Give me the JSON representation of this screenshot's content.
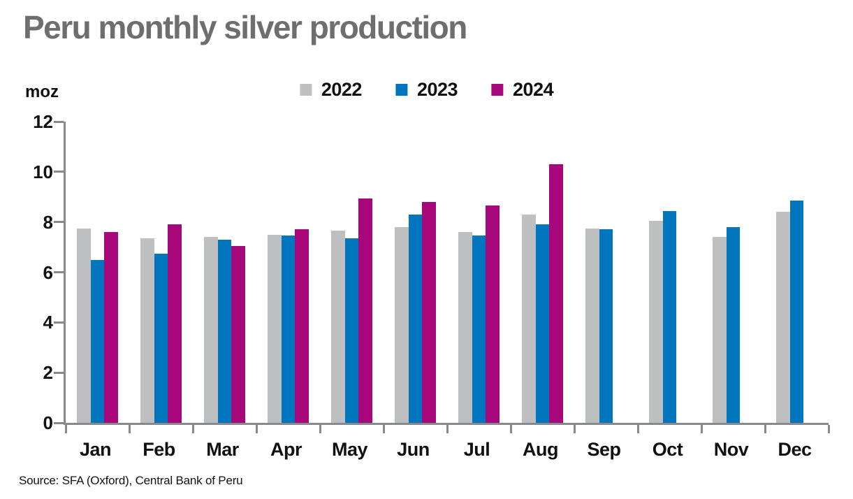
{
  "title": "Peru monthly silver production",
  "y_axis_unit": "moz",
  "source": "Source: SFA (Oxford), Central Bank of Peru",
  "chart_data": {
    "type": "bar",
    "title": "Peru monthly silver production",
    "ylabel": "moz",
    "xlabel": "",
    "categories": [
      "Jan",
      "Feb",
      "Mar",
      "Apr",
      "May",
      "Jun",
      "Jul",
      "Aug",
      "Sep",
      "Oct",
      "Nov",
      "Dec"
    ],
    "series": [
      {
        "name": "2022",
        "color": "#BEBFC1",
        "values": [
          7.75,
          7.35,
          7.4,
          7.5,
          7.65,
          7.8,
          7.6,
          8.3,
          7.75,
          8.05,
          7.4,
          8.4
        ]
      },
      {
        "name": "2023",
        "color": "#0076BE",
        "values": [
          6.5,
          6.75,
          7.3,
          7.45,
          7.35,
          8.3,
          7.45,
          7.9,
          7.7,
          8.45,
          7.8,
          8.85
        ]
      },
      {
        "name": "2024",
        "color": "#A8077B",
        "values": [
          7.6,
          7.9,
          7.05,
          7.7,
          8.95,
          8.8,
          8.65,
          10.3,
          null,
          null,
          null,
          null
        ]
      }
    ],
    "ylim": [
      0,
      12
    ],
    "ytick_step": 2,
    "yticks": [
      0,
      2,
      4,
      6,
      8,
      10,
      12
    ],
    "grid": false,
    "legend_position": "top-center",
    "axis_color": "#87898C"
  }
}
